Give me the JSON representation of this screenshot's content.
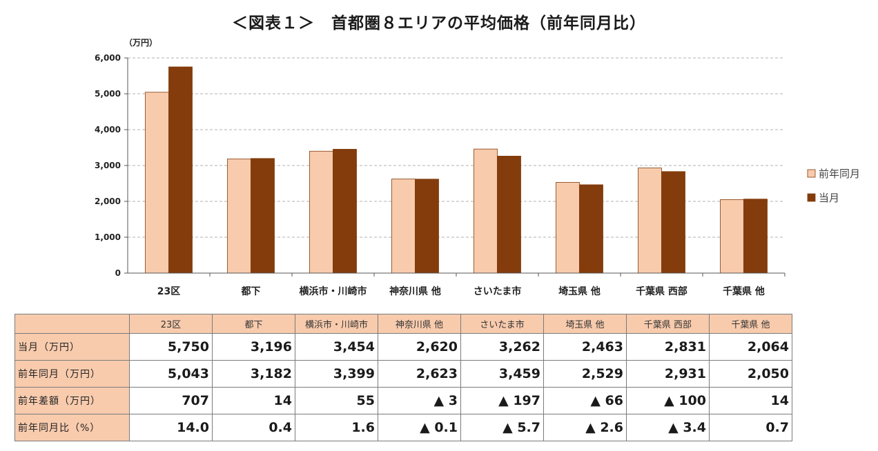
{
  "title": "＜図表１＞　首都圏８エリアの平均価格（前年同月比）",
  "chart_data": {
    "type": "bar",
    "unit_label": "（万円）",
    "categories": [
      "23区",
      "都下",
      "横浜市・川崎市",
      "神奈川県 他",
      "さいたま市",
      "埼玉県 他",
      "千葉県 西部",
      "千葉県 他"
    ],
    "series": [
      {
        "name": "前年同月",
        "color": "#f8cbad",
        "values": [
          5043,
          3182,
          3399,
          2623,
          3459,
          2529,
          2931,
          2050
        ]
      },
      {
        "name": "当月",
        "color": "#843c0c",
        "values": [
          5750,
          3196,
          3454,
          2620,
          3262,
          2463,
          2831,
          2064
        ]
      }
    ],
    "ylim": [
      0,
      6000
    ],
    "yticks": [
      "0",
      "1,000",
      "2,000",
      "3,000",
      "4,000",
      "5,000",
      "6,000"
    ],
    "grid": true,
    "legend_position": "right"
  },
  "table": {
    "header": [
      "",
      "23区",
      "都下",
      "横浜市・川崎市",
      "神奈川県 他",
      "さいたま市",
      "埼玉県 他",
      "千葉県 西部",
      "千葉県 他"
    ],
    "rows": [
      {
        "label": "当月（万円）",
        "cells": [
          "5,750",
          "3,196",
          "3,454",
          "2,620",
          "3,262",
          "2,463",
          "2,831",
          "2,064"
        ]
      },
      {
        "label": "前年同月（万円）",
        "cells": [
          "5,043",
          "3,182",
          "3,399",
          "2,623",
          "3,459",
          "2,529",
          "2,931",
          "2,050"
        ]
      },
      {
        "label": "前年差額（万円）",
        "cells": [
          "707",
          "14",
          "55",
          "▲ 3",
          "▲ 197",
          "▲ 66",
          "▲ 100",
          "14"
        ]
      },
      {
        "label": "前年同月比（%）",
        "cells": [
          "14.0",
          "0.4",
          "1.6",
          "▲ 0.1",
          "▲ 5.7",
          "▲ 2.6",
          "▲ 3.4",
          "0.7"
        ]
      }
    ]
  }
}
